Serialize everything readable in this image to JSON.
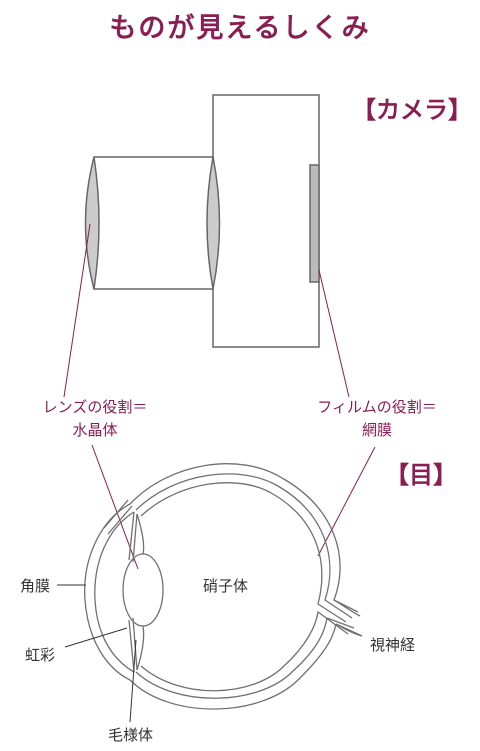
{
  "title": "ものが見えるしくみ",
  "camera": {
    "heading": "【カメラ】",
    "lens_role_line1": "レンズの役割＝",
    "lens_role_line2": "水晶体",
    "film_role_line1": "フィルムの役割＝",
    "film_role_line2": "網膜"
  },
  "eye": {
    "heading": "【目】",
    "labels": {
      "cornea": "角膜",
      "vitreous": "硝子体",
      "optic_nerve": "視神経",
      "iris": "虹彩",
      "ciliary": "毛様体"
    }
  },
  "colors": {
    "accent": "#8c1d52",
    "line": "#666666",
    "lens_fill": "#cccccc"
  }
}
